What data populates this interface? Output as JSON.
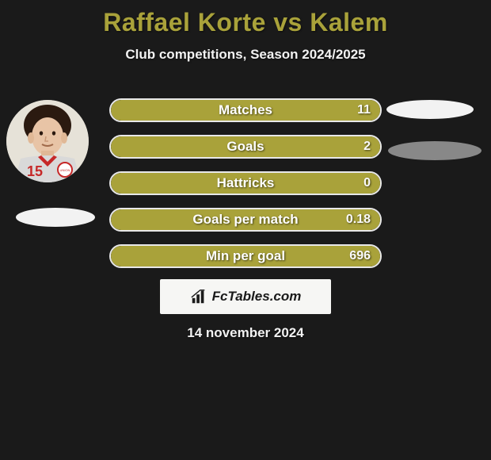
{
  "title": {
    "text": "Raffael Korte vs Kalem",
    "color": "#a9a23a",
    "fontsize": 32
  },
  "subtitle": {
    "text": "Club competitions, Season 2024/2025",
    "color": "#f2f2f2",
    "fontsize": 17
  },
  "date": {
    "text": "14 november 2024",
    "color": "#f2f2f2",
    "fontsize": 17
  },
  "watermark": {
    "text": "FcTables.com",
    "background": "#f6f6f4",
    "text_color": "#1a1a1a"
  },
  "background_color": "#1a1a1a",
  "stat_bar": {
    "fill_color": "#a9a23a",
    "border_color": "#e8e8e8",
    "label_color": "#ffffff",
    "value_color": "#fafafa",
    "height": 30,
    "radius": 15,
    "label_fontsize": 17,
    "value_fontsize": 16
  },
  "ellipses": {
    "left_name_color": "#f2f2f2",
    "right_top_color": "#f2f2f2",
    "right_bottom_color": "#888888"
  },
  "player_left": {
    "jersey_number": "15",
    "club_badge_text": "UNION"
  },
  "stats": [
    {
      "label": "Matches",
      "value": "11",
      "fill_pct": 100
    },
    {
      "label": "Goals",
      "value": "2",
      "fill_pct": 100
    },
    {
      "label": "Hattricks",
      "value": "0",
      "fill_pct": 100
    },
    {
      "label": "Goals per match",
      "value": "0.18",
      "fill_pct": 100
    },
    {
      "label": "Min per goal",
      "value": "696",
      "fill_pct": 100
    }
  ]
}
